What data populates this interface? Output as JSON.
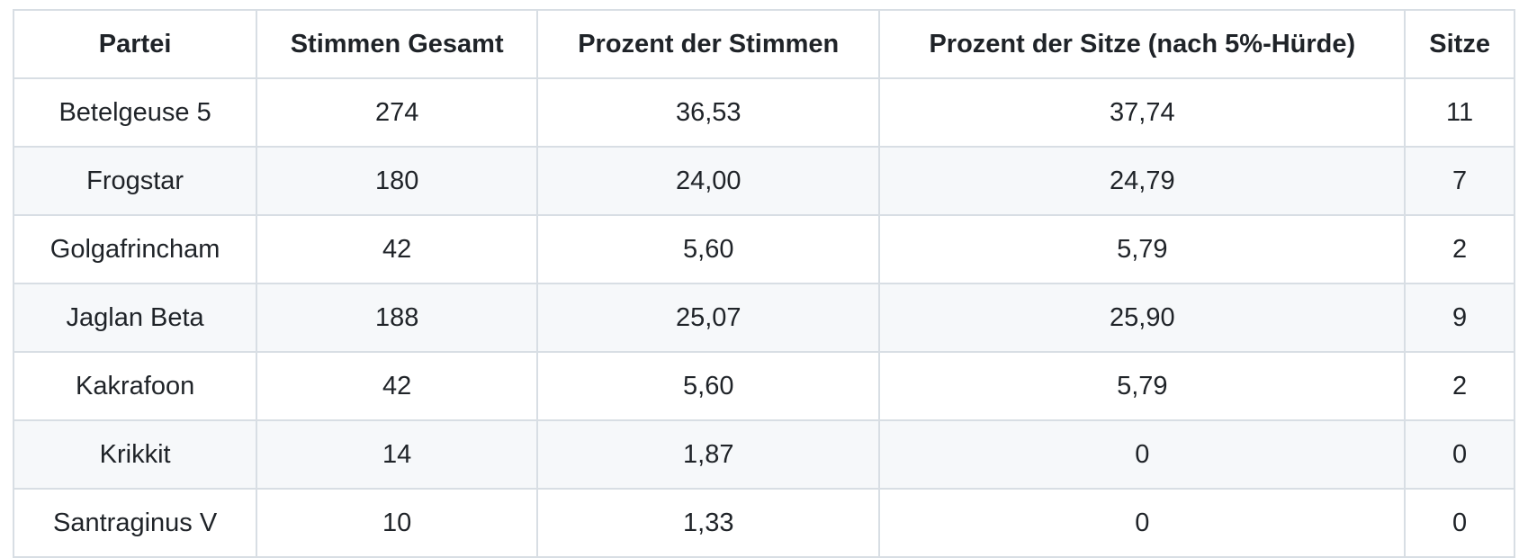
{
  "table": {
    "columns": [
      "Partei",
      "Stimmen Gesamt",
      "Prozent der Stimmen",
      "Prozent der Sitze (nach 5%-Hürde)",
      "Sitze"
    ],
    "rows": [
      [
        "Betelgeuse 5",
        "274",
        "36,53",
        "37,74",
        "11"
      ],
      [
        "Frogstar",
        "180",
        "24,00",
        "24,79",
        "7"
      ],
      [
        "Golgafrincham",
        "42",
        "5,60",
        "5,79",
        "2"
      ],
      [
        "Jaglan Beta",
        "188",
        "25,07",
        "25,90",
        "9"
      ],
      [
        "Kakrafoon",
        "42",
        "5,60",
        "5,79",
        "2"
      ],
      [
        "Krikkit",
        "14",
        "1,87",
        "0",
        "0"
      ],
      [
        "Santraginus V",
        "10",
        "1,33",
        "0",
        "0"
      ]
    ]
  },
  "colors": {
    "border": "#d8dee4",
    "stripe": "#f6f8fa",
    "text": "#1f2328",
    "background": "#ffffff"
  }
}
